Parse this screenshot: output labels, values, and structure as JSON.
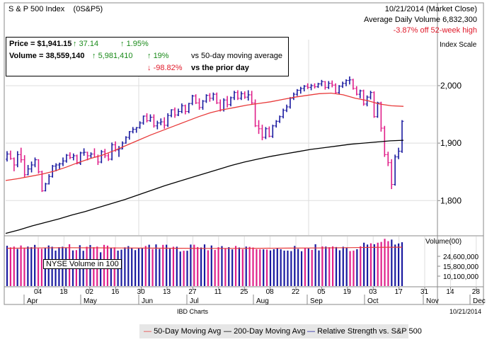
{
  "header": {
    "name": "S & P 500 Index",
    "symbol": "(0S&P5)",
    "date_line": "10/21/2014 (Market Close)",
    "avg_volume_line": "Average Daily Volume 6,832,300",
    "off_high_line": "-3.87% off 52-week high"
  },
  "infobox": {
    "price_label": "Price = ",
    "price_value": "$1,941.15",
    "price_change_arrow": "↑",
    "price_change": "37.14",
    "price_pct_arrow": "↑",
    "price_pct": "1.95%",
    "volume_label": "Volume = ",
    "volume_value": "38,559,140",
    "volume_change_arrow": "↑",
    "volume_change": "5,981,410",
    "volume_pct_50_arrow": "↑",
    "volume_pct_50": "19%",
    "vs_50_text": "vs 50-day moving average",
    "volume_pct_prior_arrow": "↓",
    "volume_pct_prior": "-98.82%",
    "vs_prior_text": "vs the prior day"
  },
  "volume_panel": {
    "label": "NYSE Volume in 100",
    "scale_title": "Volume(00)"
  },
  "footer": {
    "source": "IBD Charts",
    "date": "10/21/2014"
  },
  "legend": {
    "ma50": "50-Day Moving Avg",
    "ma200": "200-Day Moving Avg",
    "rs": "Relative Strength vs. S&P 500"
  },
  "colors": {
    "up_bar": "#1a1aa0",
    "down_bar": "#e0208a",
    "ma50": "#e83a3a",
    "ma200": "#000000",
    "rs": "#1a1aa0",
    "grid": "#dddddd"
  },
  "chart_data": {
    "type": "bar",
    "title": "S & P 500 Index",
    "ylabel": "Index Scale",
    "ylim": [
      1740,
      2080
    ],
    "yticks": [
      1800,
      1900,
      2000
    ],
    "ytick_labels": [
      "1,800",
      "1,900",
      "2,000"
    ],
    "xtick_labels": [
      "04",
      "18",
      "02",
      "16",
      "30",
      "13",
      "27",
      "11",
      "25",
      "08",
      "22",
      "05",
      "19",
      "03",
      "17",
      "31",
      "14",
      "28"
    ],
    "month_labels": [
      "Apr",
      "May",
      "Jun",
      "Jul",
      "Aug",
      "Sep",
      "Oct",
      "Nov",
      "Dec"
    ],
    "series": [
      {
        "name": "Price",
        "type": "ohlc",
        "points": [
          [
            1872,
            1886,
            1868,
            1881
          ],
          [
            1881,
            1887,
            1871,
            1873
          ],
          [
            1873,
            1875,
            1851,
            1862
          ],
          [
            1862,
            1886,
            1858,
            1880
          ],
          [
            1880,
            1892,
            1866,
            1871
          ],
          [
            1871,
            1879,
            1840,
            1845
          ],
          [
            1845,
            1862,
            1844,
            1855
          ],
          [
            1855,
            1868,
            1849,
            1862
          ],
          [
            1862,
            1875,
            1858,
            1871
          ],
          [
            1871,
            1872,
            1847,
            1850
          ],
          [
            1850,
            1852,
            1815,
            1817
          ],
          [
            1817,
            1831,
            1816,
            1829
          ],
          [
            1829,
            1846,
            1828,
            1842
          ],
          [
            1842,
            1862,
            1840,
            1860
          ],
          [
            1860,
            1865,
            1851,
            1862
          ],
          [
            1862,
            1866,
            1855,
            1864
          ],
          [
            1864,
            1875,
            1860,
            1869
          ],
          [
            1869,
            1881,
            1866,
            1879
          ],
          [
            1879,
            1884,
            1872,
            1875
          ],
          [
            1875,
            1882,
            1870,
            1878
          ],
          [
            1878,
            1880,
            1863,
            1865
          ],
          [
            1865,
            1885,
            1862,
            1883
          ],
          [
            1883,
            1891,
            1878,
            1884
          ],
          [
            1884,
            1885,
            1870,
            1878
          ],
          [
            1878,
            1884,
            1874,
            1881
          ],
          [
            1881,
            1891,
            1875,
            1876
          ],
          [
            1876,
            1880,
            1862,
            1867
          ],
          [
            1867,
            1888,
            1865,
            1885
          ],
          [
            1885,
            1890,
            1874,
            1878
          ],
          [
            1878,
            1882,
            1869,
            1872
          ],
          [
            1872,
            1901,
            1870,
            1897
          ],
          [
            1897,
            1903,
            1885,
            1888
          ],
          [
            1888,
            1895,
            1876,
            1890
          ],
          [
            1890,
            1903,
            1889,
            1900
          ],
          [
            1900,
            1912,
            1899,
            1910
          ],
          [
            1910,
            1921,
            1906,
            1920
          ],
          [
            1920,
            1928,
            1917,
            1924
          ],
          [
            1924,
            1928,
            1918,
            1927
          ],
          [
            1927,
            1938,
            1925,
            1935
          ],
          [
            1935,
            1948,
            1932,
            1947
          ],
          [
            1947,
            1952,
            1936,
            1939
          ],
          [
            1939,
            1950,
            1937,
            1945
          ],
          [
            1945,
            1950,
            1927,
            1930
          ],
          [
            1930,
            1939,
            1924,
            1935
          ],
          [
            1935,
            1943,
            1931,
            1937
          ],
          [
            1937,
            1945,
            1925,
            1931
          ],
          [
            1931,
            1952,
            1928,
            1948
          ],
          [
            1948,
            1959,
            1945,
            1958
          ],
          [
            1958,
            1962,
            1944,
            1949
          ],
          [
            1949,
            1960,
            1947,
            1955
          ],
          [
            1955,
            1969,
            1952,
            1965
          ],
          [
            1965,
            1967,
            1950,
            1955
          ],
          [
            1955,
            1970,
            1952,
            1969
          ],
          [
            1969,
            1984,
            1966,
            1982
          ],
          [
            1982,
            1985,
            1968,
            1970
          ],
          [
            1970,
            1978,
            1958,
            1962
          ],
          [
            1962,
            1975,
            1958,
            1973
          ],
          [
            1973,
            1985,
            1970,
            1983
          ],
          [
            1983,
            1987,
            1972,
            1978
          ],
          [
            1978,
            1988,
            1974,
            1985
          ],
          [
            1985,
            1988,
            1968,
            1970
          ],
          [
            1970,
            1976,
            1955,
            1958
          ],
          [
            1958,
            1978,
            1955,
            1975
          ],
          [
            1975,
            1982,
            1962,
            1967
          ],
          [
            1967,
            1981,
            1964,
            1979
          ],
          [
            1979,
            1991,
            1975,
            1988
          ],
          [
            1988,
            1992,
            1975,
            1978
          ],
          [
            1978,
            1990,
            1975,
            1986
          ],
          [
            1986,
            1990,
            1977,
            1980
          ],
          [
            1980,
            1992,
            1974,
            1984
          ],
          [
            1984,
            1991,
            1968,
            1970
          ],
          [
            1970,
            1976,
            1928,
            1930
          ],
          [
            1930,
            1940,
            1916,
            1925
          ],
          [
            1925,
            1932,
            1905,
            1910
          ],
          [
            1910,
            1928,
            1907,
            1925
          ],
          [
            1925,
            1929,
            1910,
            1912
          ],
          [
            1912,
            1932,
            1909,
            1930
          ],
          [
            1930,
            1940,
            1927,
            1938
          ],
          [
            1938,
            1948,
            1935,
            1946
          ],
          [
            1946,
            1960,
            1943,
            1957
          ],
          [
            1957,
            1967,
            1954,
            1963
          ],
          [
            1963,
            1980,
            1960,
            1978
          ],
          [
            1978,
            1988,
            1975,
            1985
          ],
          [
            1985,
            1994,
            1982,
            1992
          ],
          [
            1992,
            1998,
            1986,
            1995
          ],
          [
            1995,
            2001,
            1990,
            1999
          ],
          [
            1999,
            2004,
            1994,
            1997
          ],
          [
            1997,
            2003,
            1992,
            2000
          ],
          [
            2000,
            2004,
            1995,
            1998
          ],
          [
            1998,
            2005,
            1996,
            2003
          ],
          [
            2003,
            2010,
            1999,
            2007
          ],
          [
            2007,
            2008,
            1993,
            1997
          ],
          [
            1997,
            2008,
            1994,
            2004
          ],
          [
            2004,
            2009,
            1997,
            2001
          ],
          [
            2001,
            2004,
            1986,
            1988
          ],
          [
            1988,
            2001,
            1985,
            1999
          ],
          [
            1999,
            2007,
            1996,
            2004
          ],
          [
            2004,
            2011,
            1999,
            2009
          ],
          [
            2009,
            2016,
            2002,
            2010
          ],
          [
            2010,
            2012,
            1993,
            1995
          ],
          [
            1995,
            1999,
            1983,
            1985
          ],
          [
            1985,
            1993,
            1978,
            1991
          ],
          [
            1991,
            1993,
            1965,
            1968
          ],
          [
            1968,
            1983,
            1964,
            1980
          ],
          [
            1980,
            1991,
            1976,
            1988
          ],
          [
            1988,
            1990,
            1944,
            1946
          ],
          [
            1946,
            1972,
            1944,
            1970
          ],
          [
            1970,
            1972,
            1920,
            1926
          ],
          [
            1926,
            1930,
            1876,
            1880
          ],
          [
            1880,
            1885,
            1860,
            1866
          ],
          [
            1866,
            1872,
            1820,
            1828
          ],
          [
            1828,
            1880,
            1826,
            1876
          ],
          [
            1876,
            1892,
            1872,
            1886
          ],
          [
            1886,
            1940,
            1883,
            1938
          ]
        ]
      },
      {
        "name": "50-Day Moving Avg",
        "values": [
          1835,
          1838,
          1842,
          1846,
          1851,
          1858,
          1866,
          1873,
          1879,
          1887,
          1896,
          1905,
          1914,
          1922,
          1930,
          1938,
          1946,
          1953,
          1958,
          1962,
          1966,
          1969,
          1972,
          1976,
          1980,
          1983,
          1986,
          1987,
          1984,
          1978,
          1974,
          1968,
          1965,
          1964
        ]
      },
      {
        "name": "200-Day Moving Avg",
        "values": [
          1743,
          1749,
          1756,
          1762,
          1768,
          1775,
          1781,
          1788,
          1795,
          1802,
          1810,
          1818,
          1826,
          1833,
          1840,
          1847,
          1854,
          1861,
          1867,
          1872,
          1877,
          1881,
          1885,
          1889,
          1892,
          1895,
          1898,
          1900,
          1902,
          1904,
          1905
        ]
      },
      {
        "name": "Volume",
        "values": [
          260,
          250,
          255,
          240,
          262,
          248,
          255,
          251,
          266,
          243,
          241,
          248,
          262,
          254,
          229,
          251,
          254,
          249,
          270,
          230,
          232,
          264,
          228,
          254,
          265,
          251,
          255,
          218,
          266,
          261,
          246,
          250,
          229,
          235,
          250,
          258,
          247,
          232,
          245,
          244,
          259,
          267,
          239,
          269,
          240,
          266,
          267,
          241,
          254,
          254,
          223,
          228,
          228,
          268,
          267,
          252,
          249,
          269,
          231,
          262,
          233,
          251,
          258,
          242,
          251,
          237,
          259,
          249,
          238,
          255,
          253,
          249,
          238,
          237,
          237,
          236,
          230,
          238,
          244,
          238,
          229,
          229,
          226,
          259,
          240,
          225,
          245,
          243,
          234,
          270,
          230,
          256,
          255,
          251,
          256,
          252,
          231,
          254,
          248,
          226,
          229,
          238,
          257,
          280,
          268,
          276,
          270,
          280,
          285,
          305,
          290,
          300,
          268,
          275,
          283
        ]
      },
      {
        "name": "Volume 50-Day Moving Avg",
        "values": [
          244,
          246,
          248,
          247,
          246,
          245,
          244,
          243,
          243,
          244,
          245,
          246,
          248,
          250,
          251
        ]
      }
    ],
    "volume_yticks": [
      "24,600,000",
      "15,800,000",
      "10,100,000"
    ]
  }
}
